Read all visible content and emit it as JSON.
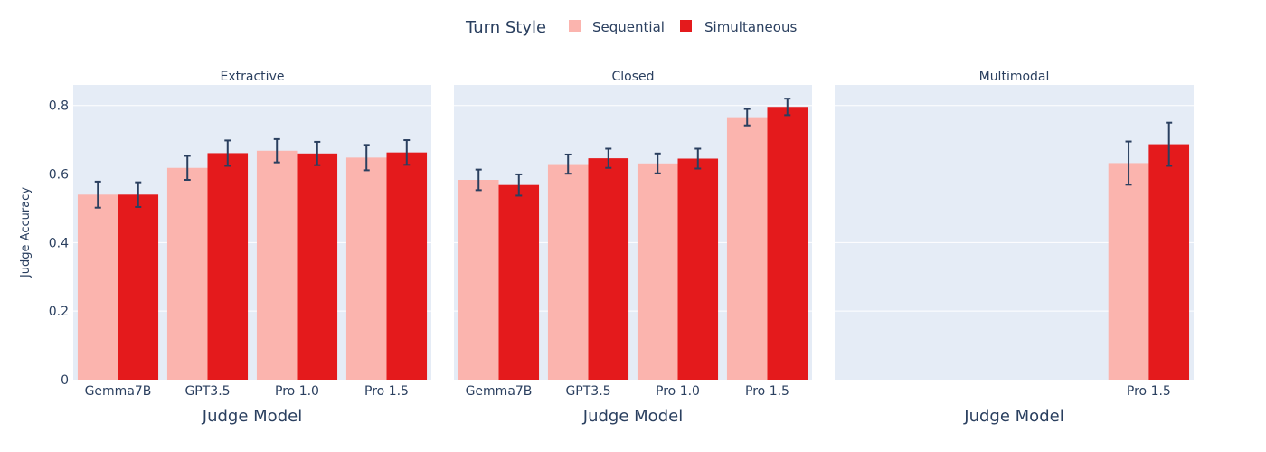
{
  "chart_data": {
    "type": "bar",
    "legend": {
      "title": "Turn Style",
      "placement": "top-center",
      "entries": [
        {
          "name": "Sequential",
          "color": "#fbb4ae"
        },
        {
          "name": "Simultaneous",
          "color": "#e41a1c"
        }
      ]
    },
    "ylabel": "Judge Accuracy",
    "ylim": [
      0,
      0.86
    ],
    "yticks": [
      0,
      0.2,
      0.4,
      0.6,
      0.8
    ],
    "ytick_labels": [
      "0",
      "0.2",
      "0.4",
      "0.6",
      "0.8"
    ],
    "grid": true,
    "error_color": "#2a3f5f",
    "panels": [
      {
        "title": "Extractive",
        "xlabel": "Judge Model",
        "categories": [
          "Gemma7B",
          "GPT3.5",
          "Pro 1.0",
          "Pro 1.5"
        ],
        "series": [
          {
            "name": "Sequential",
            "values": [
              0.54,
              0.618,
              0.668,
              0.648
            ],
            "err": [
              0.038,
              0.035,
              0.034,
              0.037
            ]
          },
          {
            "name": "Simultaneous",
            "values": [
              0.54,
              0.661,
              0.66,
              0.663
            ],
            "err": [
              0.036,
              0.037,
              0.034,
              0.036
            ]
          }
        ]
      },
      {
        "title": "Closed",
        "xlabel": "Judge Model",
        "categories": [
          "Gemma7B",
          "GPT3.5",
          "Pro 1.0",
          "Pro 1.5"
        ],
        "series": [
          {
            "name": "Sequential",
            "values": [
              0.583,
              0.629,
              0.631,
              0.766
            ],
            "err": [
              0.03,
              0.028,
              0.029,
              0.024
            ]
          },
          {
            "name": "Simultaneous",
            "values": [
              0.568,
              0.646,
              0.645,
              0.796
            ],
            "err": [
              0.031,
              0.028,
              0.029,
              0.024
            ]
          }
        ]
      },
      {
        "title": "Multimodal",
        "xlabel": "Judge Model",
        "categories": [
          "Gemma7B",
          "GPT3.5",
          "Pro 1.0",
          "Pro 1.5"
        ],
        "tick_labels": [
          "",
          "",
          "",
          "Pro 1.5"
        ],
        "series": [
          {
            "name": "Sequential",
            "values": [
              null,
              null,
              null,
              0.632
            ],
            "err": [
              null,
              null,
              null,
              0.063
            ]
          },
          {
            "name": "Simultaneous",
            "values": [
              null,
              null,
              null,
              0.687
            ],
            "err": [
              null,
              null,
              null,
              0.063
            ]
          }
        ]
      }
    ]
  }
}
